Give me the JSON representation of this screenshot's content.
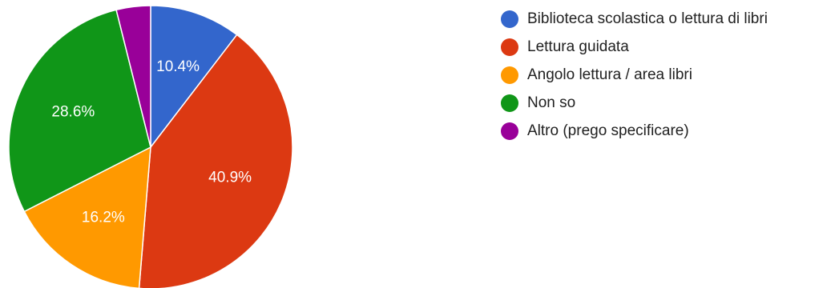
{
  "chart_data": {
    "type": "pie",
    "categories": [
      "Biblioteca scolastica o lettura di libri",
      "Lettura guidata",
      "Angolo lettura / area libri",
      "Non so",
      "Altro (prego specificare)"
    ],
    "values": [
      10.4,
      40.9,
      16.2,
      28.6,
      3.9
    ],
    "data_labels": [
      "10.4%",
      "40.9%",
      "16.2%",
      "28.6%",
      ""
    ],
    "colors": [
      "#3366cc",
      "#dc3912",
      "#ff9900",
      "#109618",
      "#990099"
    ],
    "start_angle_deg": 90,
    "direction": "clockwise",
    "legend_position": "right"
  }
}
